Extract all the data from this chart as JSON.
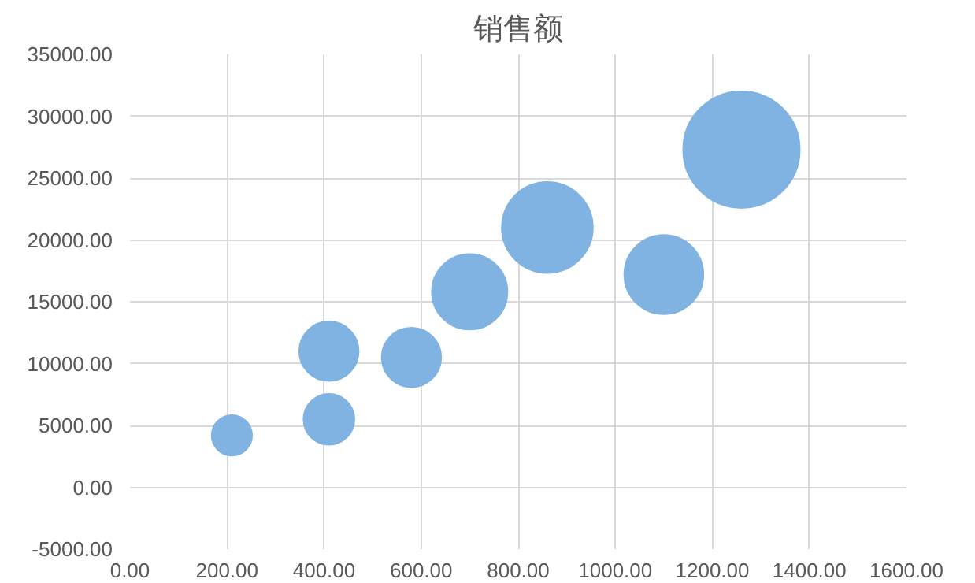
{
  "chart_data": {
    "type": "bubble",
    "title": "销售额",
    "x": [
      210,
      410,
      410,
      580,
      700,
      860,
      1100,
      1260
    ],
    "series": [
      {
        "color": "#80b3e2",
        "values": [
          4200,
          11000,
          5500,
          10500,
          15800,
          21000,
          17200,
          27300
        ],
        "sizes": [
          0.12,
          0.26,
          0.19,
          0.26,
          0.42,
          0.61,
          0.46,
          1
        ]
      }
    ],
    "xlim": [
      0,
      1600
    ],
    "xticks": [
      {
        "value": 0,
        "label": "0.00"
      },
      {
        "value": 200,
        "label": "200.00"
      },
      {
        "value": 400,
        "label": "400.00"
      },
      {
        "value": 600,
        "label": "600.00"
      },
      {
        "value": 800,
        "label": "800.00"
      },
      {
        "value": 1000,
        "label": "1000.00"
      },
      {
        "value": 1200,
        "label": "1200.00"
      },
      {
        "value": 1400,
        "label": "1400.00"
      },
      {
        "value": 1600,
        "label": "1600.00"
      }
    ],
    "ylim": [
      -5000,
      35000
    ],
    "yticks": [
      {
        "value": -5000,
        "label": "-5000.00"
      },
      {
        "value": 0,
        "label": "0.00"
      },
      {
        "value": 5000,
        "label": "5000.00"
      },
      {
        "value": 10000,
        "label": "10000.00"
      },
      {
        "value": 15000,
        "label": "15000.00"
      },
      {
        "value": 20000,
        "label": "20000.00"
      },
      {
        "value": 25000,
        "label": "25000.00"
      },
      {
        "value": 30000,
        "label": "30000.00"
      },
      {
        "value": 35000,
        "label": "35000.00"
      }
    ],
    "grid": true
  }
}
